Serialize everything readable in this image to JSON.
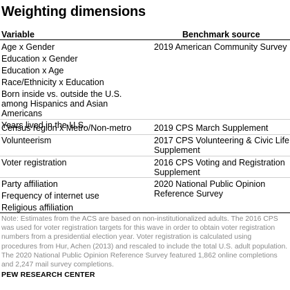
{
  "title": "Weighting dimensions",
  "headers": {
    "variable": "Variable",
    "source": "Benchmark source"
  },
  "rows": [
    {
      "variables": [
        "Age x Gender",
        "Education x Gender",
        "Education x Age",
        "Race/Ethnicity x Education",
        "Born inside vs. outside the U.S. among Hispanics and Asian Americans",
        "Years lived in the U.S."
      ],
      "source": "2019 American Community Survey"
    },
    {
      "variables": [
        "Census region x Metro/Non-metro"
      ],
      "source": "2019 CPS March Supplement"
    },
    {
      "variables": [
        "Volunteerism"
      ],
      "source": "2017 CPS Volunteering & Civic Life Supplement"
    },
    {
      "variables": [
        "Voter registration"
      ],
      "source": "2016 CPS Voting and Registration Supplement"
    },
    {
      "variables": [
        "Party affiliation",
        "Frequency of internet use",
        "Religious affiliation"
      ],
      "source": "2020 National Public Opinion Reference Survey"
    }
  ],
  "note": "Note: Estimates from the ACS are based on non-institutionalized adults. The 2016 CPS was used for voter registration targets for this wave in order to obtain voter registration numbers from a presidential election year. Voter registration is calculated using procedures from Hur, Achen (2013) and rescaled to include the total U.S. adult population. The 2020 National Public Opinion Reference Survey featured 1,862 online completions and 2,247 mail survey completions.",
  "brand": "PEW RESEARCH CENTER"
}
